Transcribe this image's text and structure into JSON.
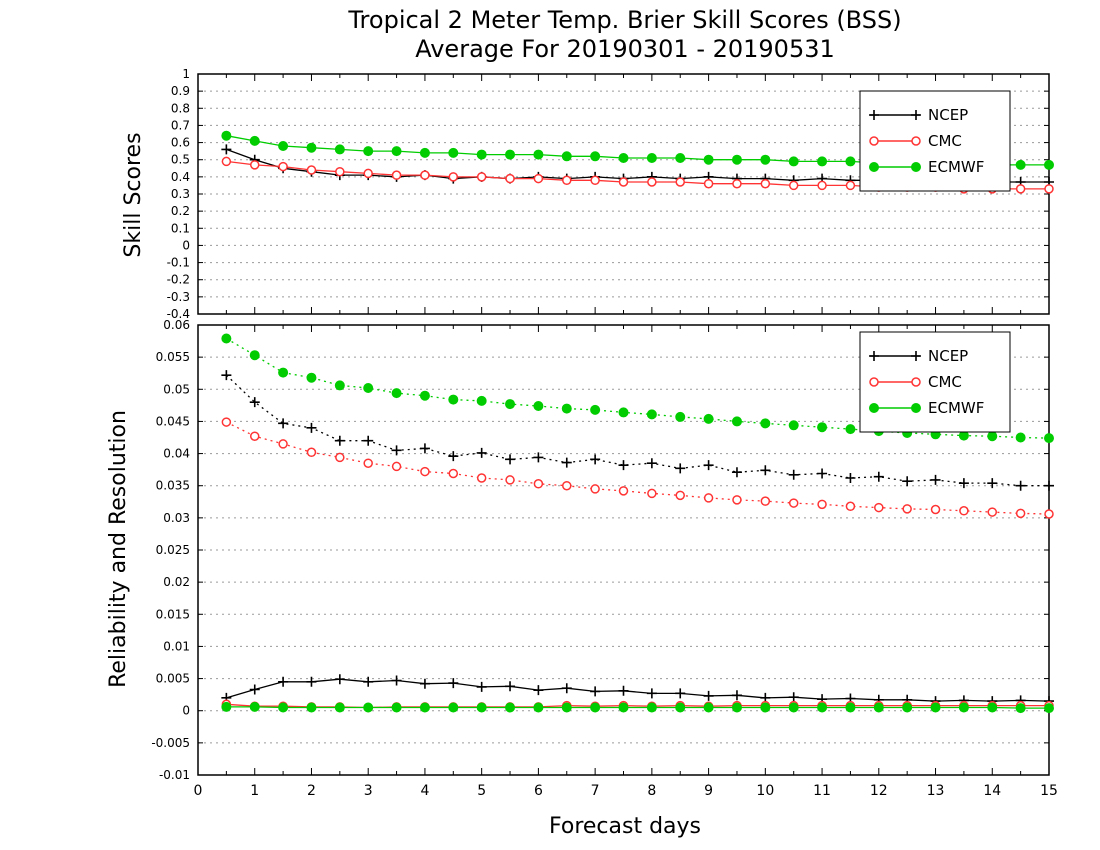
{
  "title_line1": "Tropical 2 Meter Temp. Brier Skill Scores (BSS)",
  "title_line2": "Average For 20190301 - 20190531",
  "xlabel": "Forecast days",
  "colors": {
    "NCEP": "#000000",
    "CMC": "#ff3333",
    "ECMWF": "#00cc00"
  },
  "chart_data": [
    {
      "type": "line",
      "ylabel": "Skill Scores",
      "xlim": [
        0,
        15
      ],
      "ylim": [
        -0.4,
        1
      ],
      "yticks": [
        "1",
        "0.9",
        "0.8",
        "0.7",
        "0.6",
        "0.5",
        "0.4",
        "0.3",
        "0.2",
        "0.1",
        "0",
        "-0.1",
        "-0.2",
        "-0.3",
        "-0.4"
      ],
      "grid": true,
      "legend_position": "top-right",
      "x": [
        0.5,
        1,
        1.5,
        2,
        2.5,
        3,
        3.5,
        4,
        4.5,
        5,
        5.5,
        6,
        6.5,
        7,
        7.5,
        8,
        8.5,
        9,
        9.5,
        10,
        10.5,
        11,
        11.5,
        12,
        12.5,
        13,
        13.5,
        14,
        14.5,
        15
      ],
      "series": [
        {
          "name": "NCEP",
          "marker": "plus",
          "style": "solid",
          "values": [
            0.56,
            0.5,
            0.45,
            0.43,
            0.41,
            0.41,
            0.4,
            0.41,
            0.39,
            0.4,
            0.39,
            0.4,
            0.39,
            0.4,
            0.39,
            0.4,
            0.39,
            0.4,
            0.39,
            0.39,
            0.38,
            0.39,
            0.38,
            0.38,
            0.37,
            0.38,
            0.37,
            0.37,
            0.37,
            0.37
          ]
        },
        {
          "name": "CMC",
          "marker": "open-circle",
          "style": "solid",
          "values": [
            0.49,
            0.47,
            0.46,
            0.44,
            0.43,
            0.42,
            0.41,
            0.41,
            0.4,
            0.4,
            0.39,
            0.39,
            0.38,
            0.38,
            0.37,
            0.37,
            0.37,
            0.36,
            0.36,
            0.36,
            0.35,
            0.35,
            0.35,
            0.34,
            0.34,
            0.34,
            0.33,
            0.33,
            0.33,
            0.33
          ]
        },
        {
          "name": "ECMWF",
          "marker": "filled-circle",
          "style": "solid",
          "values": [
            0.64,
            0.61,
            0.58,
            0.57,
            0.56,
            0.55,
            0.55,
            0.54,
            0.54,
            0.53,
            0.53,
            0.53,
            0.52,
            0.52,
            0.51,
            0.51,
            0.51,
            0.5,
            0.5,
            0.5,
            0.49,
            0.49,
            0.49,
            0.48,
            0.48,
            0.48,
            0.48,
            0.47,
            0.47,
            0.47
          ]
        }
      ]
    },
    {
      "type": "line",
      "ylabel": "Reliability and Resolution",
      "xlim": [
        0,
        15
      ],
      "ylim": [
        -0.01,
        0.06
      ],
      "yticks": [
        "0.06",
        "0.055",
        "0.05",
        "0.045",
        "0.04",
        "0.035",
        "0.03",
        "0.025",
        "0.02",
        "0.015",
        "0.01",
        "0.005",
        "0",
        "-0.005",
        "-0.01"
      ],
      "xticks": [
        "0",
        "1",
        "2",
        "3",
        "4",
        "5",
        "6",
        "7",
        "8",
        "9",
        "10",
        "11",
        "12",
        "13",
        "14",
        "15"
      ],
      "grid": true,
      "legend_position": "top-right",
      "x": [
        0.5,
        1,
        1.5,
        2,
        2.5,
        3,
        3.5,
        4,
        4.5,
        5,
        5.5,
        6,
        6.5,
        7,
        7.5,
        8,
        8.5,
        9,
        9.5,
        10,
        10.5,
        11,
        11.5,
        12,
        12.5,
        13,
        13.5,
        14,
        14.5,
        15
      ],
      "series": [
        {
          "name": "NCEP",
          "marker": "plus",
          "style": "dotted",
          "values": [
            0.0522,
            0.048,
            0.0447,
            0.044,
            0.042,
            0.042,
            0.0405,
            0.0408,
            0.0396,
            0.0401,
            0.0391,
            0.0394,
            0.0386,
            0.0391,
            0.0382,
            0.0385,
            0.0377,
            0.0382,
            0.0371,
            0.0374,
            0.0367,
            0.0369,
            0.0362,
            0.0364,
            0.0357,
            0.0359,
            0.0354,
            0.0354,
            0.035,
            0.035
          ]
        },
        {
          "name": "CMC",
          "marker": "open-circle",
          "style": "dotted",
          "values": [
            0.0449,
            0.0427,
            0.0415,
            0.0402,
            0.0394,
            0.0385,
            0.038,
            0.0372,
            0.0369,
            0.0362,
            0.0359,
            0.0353,
            0.035,
            0.0345,
            0.0342,
            0.0338,
            0.0335,
            0.0331,
            0.0328,
            0.0326,
            0.0323,
            0.0321,
            0.0318,
            0.0316,
            0.0314,
            0.0313,
            0.0311,
            0.0309,
            0.0307,
            0.0306
          ]
        },
        {
          "name": "ECMWF",
          "marker": "filled-circle",
          "style": "dotted",
          "values": [
            0.0579,
            0.0553,
            0.0526,
            0.0518,
            0.0506,
            0.0502,
            0.0494,
            0.049,
            0.0484,
            0.0482,
            0.0477,
            0.0474,
            0.047,
            0.0468,
            0.0464,
            0.0461,
            0.0457,
            0.0454,
            0.045,
            0.0447,
            0.0444,
            0.0441,
            0.0438,
            0.0435,
            0.0432,
            0.043,
            0.0428,
            0.0427,
            0.0425,
            0.0424
          ]
        },
        {
          "name": "NCEP",
          "marker": "plus",
          "style": "solid",
          "values": [
            0.002,
            0.0033,
            0.0045,
            0.0045,
            0.0049,
            0.0045,
            0.0047,
            0.0042,
            0.0043,
            0.0037,
            0.0038,
            0.0032,
            0.0035,
            0.003,
            0.0031,
            0.0027,
            0.0027,
            0.0023,
            0.0024,
            0.002,
            0.0021,
            0.0018,
            0.0019,
            0.0017,
            0.0017,
            0.0015,
            0.0016,
            0.0015,
            0.0016,
            0.0015
          ]
        },
        {
          "name": "CMC",
          "marker": "open-circle",
          "style": "solid",
          "values": [
            0.001,
            0.0007,
            0.0007,
            0.0006,
            0.0006,
            0.0005,
            0.0006,
            0.0006,
            0.0006,
            0.0006,
            0.0006,
            0.0006,
            0.0008,
            0.0007,
            0.0008,
            0.0007,
            0.0008,
            0.0007,
            0.0008,
            0.0008,
            0.0008,
            0.0008,
            0.0008,
            0.0008,
            0.0008,
            0.0008,
            0.0008,
            0.0008,
            0.0008,
            0.0008
          ]
        },
        {
          "name": "ECMWF",
          "marker": "filled-circle",
          "style": "solid",
          "values": [
            0.0006,
            0.0006,
            0.0005,
            0.0005,
            0.0005,
            0.0005,
            0.0005,
            0.0005,
            0.0005,
            0.0005,
            0.0005,
            0.0005,
            0.0005,
            0.0005,
            0.0005,
            0.0005,
            0.0005,
            0.0005,
            0.0005,
            0.0005,
            0.0005,
            0.0005,
            0.0005,
            0.0005,
            0.0005,
            0.0005,
            0.0005,
            0.0005,
            0.0004,
            0.0004
          ]
        }
      ]
    }
  ]
}
